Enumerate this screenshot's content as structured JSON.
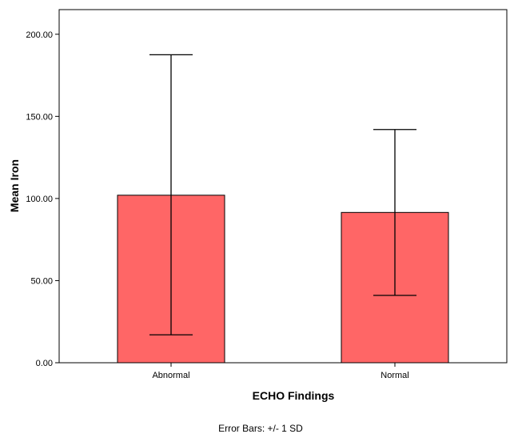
{
  "chart_data": {
    "type": "bar",
    "categories": [
      "Abnormal",
      "Normal"
    ],
    "values": [
      102.0,
      91.5
    ],
    "error_low": [
      17.0,
      41.0
    ],
    "error_high": [
      187.5,
      142.0
    ],
    "xlabel": "ECHO Findings",
    "ylabel": "Mean Iron",
    "ylim": [
      0,
      215
    ],
    "yticks": [
      "0.00",
      "50.00",
      "100.00",
      "150.00",
      "200.00"
    ],
    "ytick_values": [
      0,
      50,
      100,
      150,
      200
    ],
    "footnote": "Error Bars: +/- 1 SD",
    "grid": false,
    "legend": "none",
    "bar_color": "#FF6666",
    "bar_stroke": "#000000"
  }
}
